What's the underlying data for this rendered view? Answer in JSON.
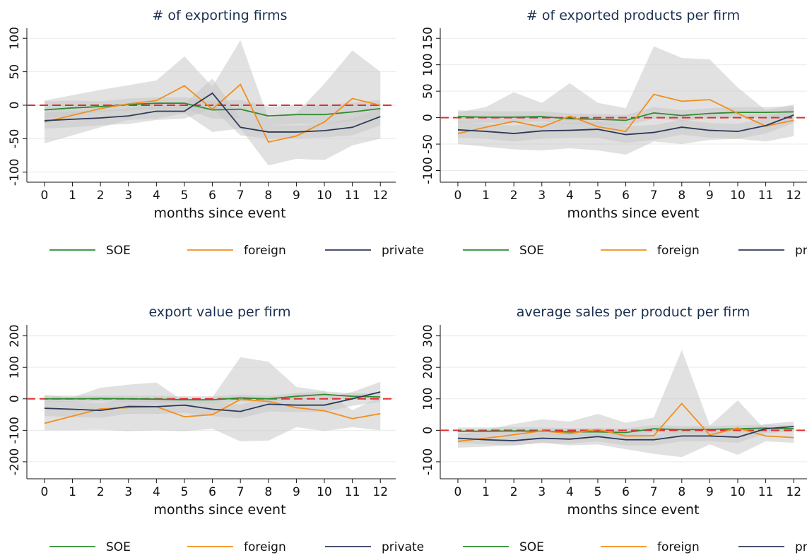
{
  "chart_data": [
    {
      "type": "line",
      "title": "# of exporting firms",
      "xlabel": "months since event",
      "x": [
        0,
        1,
        2,
        3,
        4,
        5,
        6,
        7,
        8,
        9,
        10,
        11,
        12
      ],
      "xlim": [
        -0.63,
        12.55
      ],
      "xticks": [
        0,
        1,
        2,
        3,
        4,
        5,
        6,
        7,
        8,
        9,
        10,
        11,
        12
      ],
      "ylim": [
        -115,
        115
      ],
      "yticks": [
        -100,
        -50,
        0,
        50,
        100
      ],
      "reference_line": 0,
      "reference_color": "#e03030",
      "band_color": "#c8c8c8",
      "series": [
        {
          "name": "SOE",
          "color": "#2e8b2e",
          "values": [
            -7,
            -4,
            -2,
            1,
            3,
            3,
            -7,
            -6,
            -16,
            -14,
            -14,
            -10,
            -5
          ],
          "lower": [
            -20,
            -15,
            -10,
            -8,
            -6,
            -6,
            -20,
            -20,
            -30,
            -28,
            -28,
            -24,
            -18
          ],
          "upper": [
            6,
            7,
            6,
            10,
            12,
            12,
            6,
            8,
            -2,
            0,
            0,
            4,
            8
          ]
        },
        {
          "name": "foreign",
          "color": "#f28e1c",
          "values": [
            -25,
            -15,
            -5,
            2,
            7,
            29,
            -6,
            31,
            -55,
            -46,
            -25,
            10,
            0
          ],
          "lower": [
            -57,
            -45,
            -33,
            -22,
            -20,
            -12,
            -40,
            -35,
            -90,
            -80,
            -82,
            -60,
            -50
          ],
          "upper": [
            7,
            15,
            23,
            30,
            37,
            73,
            28,
            97,
            -20,
            -12,
            32,
            82,
            50
          ]
        },
        {
          "name": "private",
          "color": "#2d3a5a",
          "values": [
            -23,
            -21,
            -19,
            -16,
            -9,
            -9,
            18,
            -33,
            -40,
            -40,
            -38,
            -33,
            -17
          ],
          "lower": [
            -35,
            -33,
            -30,
            -28,
            -22,
            -20,
            -5,
            -45,
            -50,
            -50,
            -48,
            -45,
            -30
          ],
          "upper": [
            -11,
            -9,
            -8,
            -5,
            4,
            2,
            40,
            -20,
            -30,
            -30,
            -28,
            -20,
            -5
          ]
        }
      ]
    },
    {
      "type": "line",
      "title": "# of exported products per firm",
      "xlabel": "months since event",
      "x": [
        0,
        1,
        2,
        3,
        4,
        5,
        6,
        7,
        8,
        9,
        10,
        11,
        12
      ],
      "xlim": [
        -0.63,
        12.55
      ],
      "xticks": [
        0,
        1,
        2,
        3,
        4,
        5,
        6,
        7,
        8,
        9,
        10,
        11,
        12
      ],
      "ylim": [
        -122,
        169
      ],
      "yticks": [
        -100,
        -50,
        0,
        50,
        100,
        150
      ],
      "reference_line": 0,
      "reference_color": "#e03030",
      "band_color": "#c8c8c8",
      "series": [
        {
          "name": "SOE",
          "color": "#2e8b2e",
          "values": [
            2,
            1,
            1,
            2,
            -2,
            -3,
            -5,
            9,
            4,
            8,
            10,
            10,
            11
          ],
          "lower": [
            -10,
            -10,
            -10,
            -8,
            -12,
            -13,
            -15,
            -2,
            -6,
            -2,
            0,
            0,
            0
          ],
          "upper": [
            14,
            12,
            12,
            12,
            8,
            7,
            5,
            20,
            14,
            18,
            20,
            20,
            22
          ]
        },
        {
          "name": "foreign",
          "color": "#f28e1c",
          "values": [
            -30,
            -18,
            -7,
            -18,
            3,
            -17,
            -26,
            44,
            31,
            34,
            8,
            -16,
            -5
          ],
          "lower": [
            -50,
            -55,
            -60,
            -62,
            -58,
            -62,
            -70,
            -45,
            -50,
            -42,
            -40,
            -45,
            -35
          ],
          "upper": [
            10,
            20,
            48,
            28,
            65,
            28,
            18,
            135,
            113,
            110,
            57,
            14,
            25
          ]
        },
        {
          "name": "private",
          "color": "#2d3a5a",
          "values": [
            -23,
            -26,
            -30,
            -25,
            -24,
            -22,
            -32,
            -28,
            -18,
            -24,
            -26,
            -15,
            5
          ],
          "lower": [
            -38,
            -40,
            -45,
            -40,
            -38,
            -38,
            -48,
            -42,
            -32,
            -38,
            -40,
            -30,
            -10
          ],
          "upper": [
            -8,
            -12,
            -15,
            -10,
            -10,
            -8,
            -16,
            -14,
            -4,
            -10,
            -12,
            0,
            20
          ]
        }
      ]
    },
    {
      "type": "line",
      "title": "export value per firm",
      "xlabel": "months since event",
      "x": [
        0,
        1,
        2,
        3,
        4,
        5,
        6,
        7,
        8,
        9,
        10,
        11,
        12
      ],
      "xlim": [
        -0.63,
        12.55
      ],
      "xticks": [
        0,
        1,
        2,
        3,
        4,
        5,
        6,
        7,
        8,
        9,
        10,
        11,
        12
      ],
      "ylim": [
        -254,
        235
      ],
      "yticks": [
        -200,
        -100,
        0,
        100,
        200
      ],
      "reference_line": 0,
      "reference_color": "#e03030",
      "band_color": "#c8c8c8",
      "series": [
        {
          "name": "SOE",
          "color": "#2e8b2e",
          "values": [
            0,
            0,
            1,
            0,
            -1,
            -3,
            -3,
            3,
            0,
            8,
            14,
            8,
            6
          ],
          "lower": [
            -10,
            -10,
            -8,
            -10,
            -12,
            -14,
            -15,
            -8,
            -10,
            -2,
            4,
            -2,
            -5
          ],
          "upper": [
            10,
            10,
            10,
            10,
            10,
            8,
            8,
            14,
            10,
            18,
            24,
            18,
            18
          ]
        },
        {
          "name": "foreign",
          "color": "#f28e1c",
          "values": [
            -78,
            -55,
            -32,
            -28,
            -25,
            -57,
            -50,
            -2,
            -8,
            -28,
            -38,
            -63,
            -47
          ],
          "lower": [
            -100,
            -100,
            -98,
            -103,
            -100,
            -103,
            -95,
            -135,
            -133,
            -90,
            -102,
            -90,
            -100
          ],
          "upper": [
            12,
            5,
            35,
            45,
            52,
            -10,
            5,
            132,
            118,
            38,
            25,
            -36,
            6
          ]
        },
        {
          "name": "private",
          "color": "#2d3a5a",
          "values": [
            -30,
            -33,
            -37,
            -24,
            -25,
            -20,
            -33,
            -40,
            -17,
            -20,
            -20,
            0,
            22
          ],
          "lower": [
            -55,
            -58,
            -60,
            -48,
            -48,
            -45,
            -55,
            -62,
            -40,
            -42,
            -42,
            -22,
            -10
          ],
          "upper": [
            -5,
            -8,
            -14,
            0,
            -2,
            5,
            -10,
            -18,
            5,
            2,
            2,
            22,
            54
          ]
        }
      ]
    },
    {
      "type": "line",
      "title": "average sales per product per firm",
      "xlabel": "months since event",
      "x": [
        0,
        1,
        2,
        3,
        4,
        5,
        6,
        7,
        8,
        9,
        10,
        11,
        12
      ],
      "xlim": [
        -0.63,
        12.55
      ],
      "xticks": [
        0,
        1,
        2,
        3,
        4,
        5,
        6,
        7,
        8,
        9,
        10,
        11,
        12
      ],
      "ylim": [
        -154,
        335
      ],
      "yticks": [
        -100,
        0,
        100,
        200,
        300
      ],
      "reference_line": 0,
      "reference_color": "#e03030",
      "band_color": "#c8c8c8",
      "series": [
        {
          "name": "SOE",
          "color": "#2e8b2e",
          "values": [
            -3,
            -3,
            -2,
            -3,
            -5,
            -5,
            -7,
            5,
            2,
            3,
            5,
            7,
            5
          ],
          "lower": [
            -15,
            -15,
            -14,
            -15,
            -17,
            -17,
            -20,
            -7,
            -10,
            -8,
            -6,
            -4,
            -6
          ],
          "upper": [
            9,
            9,
            10,
            9,
            7,
            7,
            6,
            17,
            14,
            14,
            16,
            18,
            16
          ]
        },
        {
          "name": "foreign",
          "color": "#f28e1c",
          "values": [
            -35,
            -25,
            -14,
            -2,
            -10,
            3,
            -18,
            -17,
            85,
            -15,
            7,
            -18,
            -23
          ],
          "lower": [
            -55,
            -52,
            -48,
            -40,
            -48,
            -45,
            -60,
            -75,
            -85,
            -45,
            -78,
            -35,
            -40
          ],
          "upper": [
            -15,
            2,
            20,
            35,
            28,
            52,
            24,
            41,
            255,
            15,
            95,
            0,
            -5
          ]
        },
        {
          "name": "private",
          "color": "#2d3a5a",
          "values": [
            -25,
            -30,
            -33,
            -25,
            -28,
            -20,
            -30,
            -30,
            -18,
            -18,
            -22,
            5,
            12
          ],
          "lower": [
            -40,
            -45,
            -48,
            -40,
            -42,
            -35,
            -48,
            -48,
            -35,
            -35,
            -40,
            -10,
            -3
          ],
          "upper": [
            -10,
            -15,
            -18,
            -10,
            -14,
            -5,
            -12,
            -12,
            -2,
            -2,
            -5,
            20,
            28
          ]
        }
      ]
    }
  ]
}
